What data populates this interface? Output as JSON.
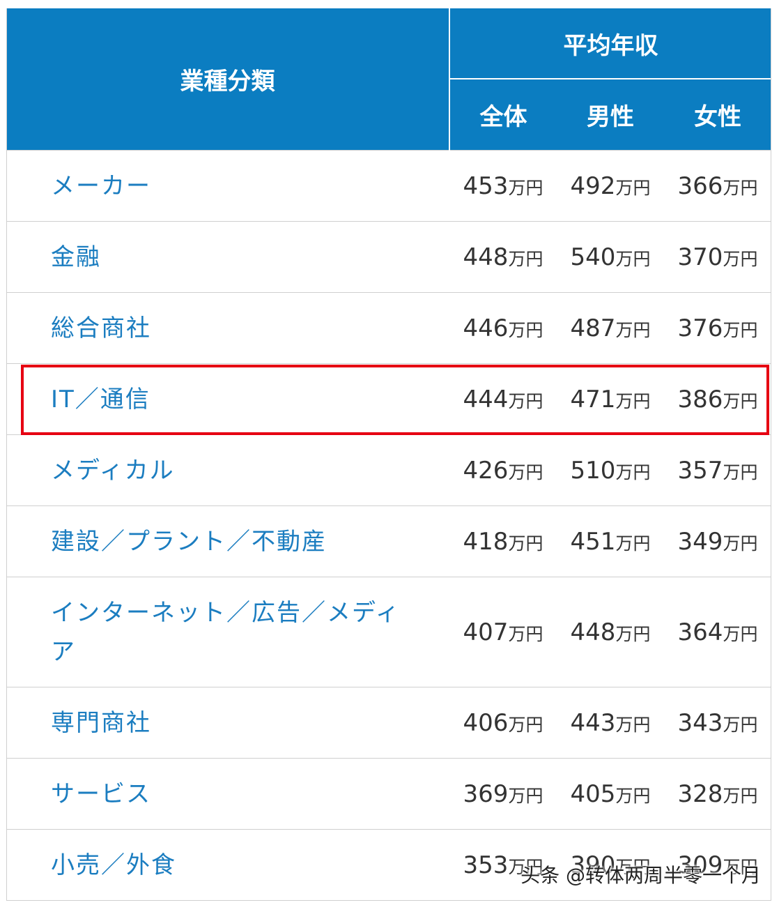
{
  "header": {
    "category_label": "業種分類",
    "avg_label": "平均年収",
    "col_all": "全体",
    "col_male": "男性",
    "col_female": "女性"
  },
  "unit": "万円",
  "rows": [
    {
      "category": "メーカー",
      "all": "453",
      "male": "492",
      "female": "366"
    },
    {
      "category": "金融",
      "all": "448",
      "male": "540",
      "female": "370"
    },
    {
      "category": "総合商社",
      "all": "446",
      "male": "487",
      "female": "376"
    },
    {
      "category": "IT／通信",
      "all": "444",
      "male": "471",
      "female": "386"
    },
    {
      "category": "メディカル",
      "all": "426",
      "male": "510",
      "female": "357"
    },
    {
      "category": "建設／プラント／不動産",
      "all": "418",
      "male": "451",
      "female": "349"
    },
    {
      "category": "インターネット／広告／メディア",
      "all": "407",
      "male": "448",
      "female": "364"
    },
    {
      "category": "専門商社",
      "all": "406",
      "male": "443",
      "female": "343"
    },
    {
      "category": "サービス",
      "all": "369",
      "male": "405",
      "female": "328"
    },
    {
      "category": "小売／外食",
      "all": "353",
      "male": "390",
      "female": "309"
    }
  ],
  "highlight_color": "#e60012",
  "header_color": "#0b7dc1",
  "category_text_color": "#1b7dc0",
  "watermark": "头条 @转体两周半零一个月"
}
